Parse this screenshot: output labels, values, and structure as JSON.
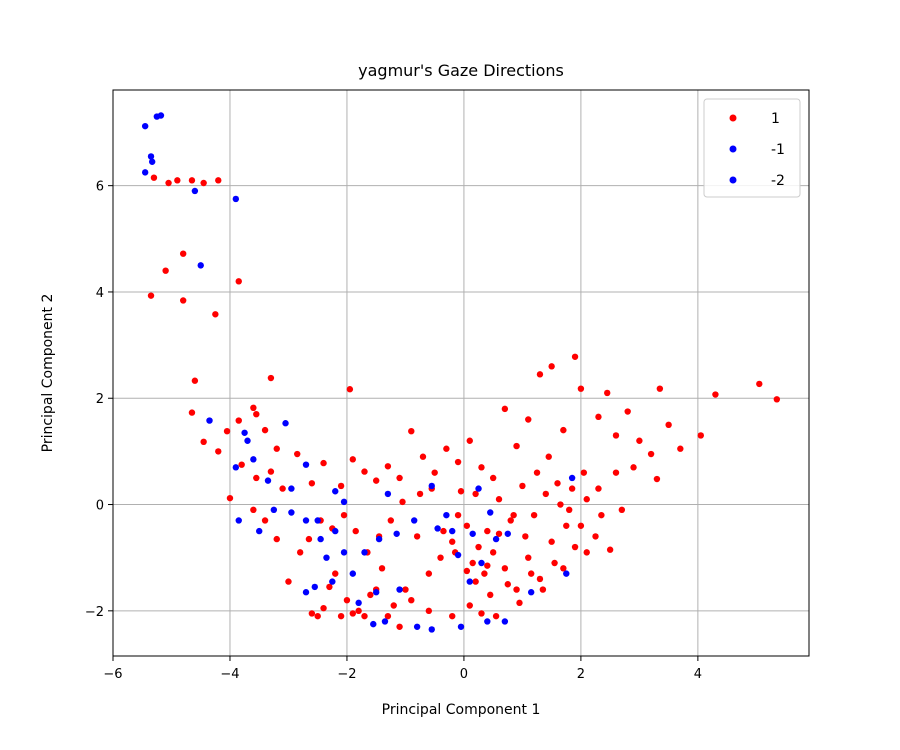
{
  "chart_data": {
    "type": "scatter",
    "title": "yagmur's Gaze Directions",
    "xlabel": "Principal Component 1",
    "ylabel": "Principal Component 2",
    "xlim": [
      -6.0,
      5.9
    ],
    "ylim": [
      -2.85,
      7.8
    ],
    "xticks": [
      -6,
      -4,
      -2,
      0,
      2,
      4
    ],
    "yticks": [
      -2,
      0,
      2,
      4,
      6
    ],
    "tick_labels_x": [
      "−6",
      "−4",
      "−2",
      "0",
      "2",
      "4"
    ],
    "tick_labels_y": [
      "−2",
      "0",
      "2",
      "4",
      "6"
    ],
    "grid": true,
    "legend_position": "top-right",
    "series": [
      {
        "name": "1",
        "color": "#ff0000",
        "points": [
          [
            -5.3,
            6.15
          ],
          [
            -5.05,
            6.05
          ],
          [
            -4.9,
            6.1
          ],
          [
            -4.65,
            6.1
          ],
          [
            -4.45,
            6.05
          ],
          [
            -4.2,
            6.1
          ],
          [
            -4.8,
            4.72
          ],
          [
            -5.1,
            4.4
          ],
          [
            -5.35,
            3.93
          ],
          [
            -4.8,
            3.84
          ],
          [
            -3.85,
            4.2
          ],
          [
            -4.25,
            3.58
          ],
          [
            -4.6,
            2.33
          ],
          [
            -3.3,
            2.38
          ],
          [
            -1.95,
            2.17
          ],
          [
            -4.65,
            1.73
          ],
          [
            -4.45,
            1.18
          ],
          [
            -4.2,
            1.0
          ],
          [
            -4.05,
            1.38
          ],
          [
            -3.85,
            1.58
          ],
          [
            -3.6,
            1.82
          ],
          [
            -3.55,
            1.7
          ],
          [
            -3.4,
            1.4
          ],
          [
            -3.2,
            1.05
          ],
          [
            -3.8,
            0.75
          ],
          [
            -3.55,
            0.5
          ],
          [
            -3.3,
            0.62
          ],
          [
            -3.1,
            0.3
          ],
          [
            -2.85,
            0.95
          ],
          [
            -2.6,
            0.4
          ],
          [
            -2.4,
            0.78
          ],
          [
            -2.1,
            0.35
          ],
          [
            -1.9,
            0.85
          ],
          [
            -1.7,
            0.62
          ],
          [
            -1.5,
            0.45
          ],
          [
            -1.3,
            0.72
          ],
          [
            -1.1,
            0.5
          ],
          [
            -0.9,
            1.38
          ],
          [
            -0.7,
            0.9
          ],
          [
            -0.5,
            0.6
          ],
          [
            -0.3,
            1.05
          ],
          [
            -0.1,
            0.8
          ],
          [
            0.1,
            1.2
          ],
          [
            0.3,
            0.7
          ],
          [
            0.5,
            0.5
          ],
          [
            0.7,
            1.8
          ],
          [
            0.9,
            1.1
          ],
          [
            1.1,
            1.6
          ],
          [
            1.3,
            2.45
          ],
          [
            1.5,
            2.6
          ],
          [
            1.7,
            1.4
          ],
          [
            1.9,
            2.78
          ],
          [
            2.0,
            2.18
          ],
          [
            2.3,
            1.65
          ],
          [
            2.45,
            2.1
          ],
          [
            2.6,
            1.3
          ],
          [
            2.8,
            1.75
          ],
          [
            3.0,
            1.2
          ],
          [
            3.2,
            0.95
          ],
          [
            3.35,
            2.18
          ],
          [
            3.5,
            1.5
          ],
          [
            3.7,
            1.05
          ],
          [
            4.05,
            1.3
          ],
          [
            4.3,
            2.07
          ],
          [
            5.05,
            2.27
          ],
          [
            5.35,
            1.98
          ],
          [
            3.3,
            0.48
          ],
          [
            2.9,
            0.7
          ],
          [
            2.6,
            0.6
          ],
          [
            2.3,
            0.3
          ],
          [
            2.1,
            0.1
          ],
          [
            2.35,
            -0.2
          ],
          [
            2.0,
            -0.4
          ],
          [
            1.8,
            -0.1
          ],
          [
            1.6,
            0.4
          ],
          [
            1.4,
            0.2
          ],
          [
            1.2,
            -0.2
          ],
          [
            1.0,
            0.35
          ],
          [
            0.8,
            -0.3
          ],
          [
            0.6,
            0.1
          ],
          [
            0.4,
            -0.5
          ],
          [
            0.25,
            -0.8
          ],
          [
            0.15,
            -1.1
          ],
          [
            0.35,
            -1.3
          ],
          [
            0.5,
            -0.9
          ],
          [
            0.7,
            -1.2
          ],
          [
            0.9,
            -1.6
          ],
          [
            1.1,
            -1.0
          ],
          [
            1.3,
            -1.4
          ],
          [
            1.5,
            -0.7
          ],
          [
            1.7,
            -1.2
          ],
          [
            1.9,
            -0.8
          ],
          [
            2.1,
            -0.9
          ],
          [
            0.05,
            -0.4
          ],
          [
            -0.1,
            -0.2
          ],
          [
            -0.2,
            -0.7
          ],
          [
            -0.4,
            -1.0
          ],
          [
            -0.6,
            -1.3
          ],
          [
            -0.8,
            -0.6
          ],
          [
            -1.0,
            -1.6
          ],
          [
            -1.2,
            -1.9
          ],
          [
            -1.4,
            -1.2
          ],
          [
            -1.6,
            -1.7
          ],
          [
            -1.8,
            -2.0
          ],
          [
            -2.0,
            -1.8
          ],
          [
            -2.2,
            -1.3
          ],
          [
            -2.4,
            -1.95
          ],
          [
            -2.6,
            -2.05
          ],
          [
            -2.8,
            -0.9
          ],
          [
            -3.0,
            -1.45
          ],
          [
            -3.2,
            -0.65
          ],
          [
            -3.4,
            -0.3
          ],
          [
            -3.6,
            -0.1
          ],
          [
            -4.0,
            0.12
          ],
          [
            -0.2,
            -2.1
          ],
          [
            -0.6,
            -2.0
          ],
          [
            -0.9,
            -1.8
          ],
          [
            -1.1,
            -2.3
          ],
          [
            -1.3,
            -2.1
          ],
          [
            -1.5,
            -1.6
          ],
          [
            -1.7,
            -2.1
          ],
          [
            -1.9,
            -2.05
          ],
          [
            -2.1,
            -2.1
          ],
          [
            -2.3,
            -1.55
          ],
          [
            -2.5,
            -2.1
          ],
          [
            0.1,
            -1.9
          ],
          [
            0.3,
            -2.05
          ],
          [
            0.45,
            -1.7
          ],
          [
            0.55,
            -2.1
          ],
          [
            0.75,
            -1.5
          ],
          [
            0.95,
            -1.85
          ],
          [
            1.15,
            -1.3
          ],
          [
            1.35,
            -1.6
          ],
          [
            1.55,
            -1.1
          ],
          [
            1.75,
            -0.4
          ],
          [
            2.25,
            -0.6
          ],
          [
            2.5,
            -0.85
          ],
          [
            2.7,
            -0.1
          ],
          [
            2.05,
            0.6
          ],
          [
            -0.55,
            0.3
          ],
          [
            -0.75,
            0.2
          ],
          [
            -1.05,
            0.05
          ],
          [
            -1.25,
            -0.3
          ],
          [
            -1.45,
            -0.6
          ],
          [
            -1.65,
            -0.9
          ],
          [
            -1.85,
            -0.5
          ],
          [
            -2.05,
            -0.2
          ],
          [
            -2.25,
            -0.45
          ],
          [
            -2.45,
            -0.3
          ],
          [
            -2.65,
            -0.65
          ],
          [
            -0.35,
            -0.5
          ],
          [
            -0.15,
            -0.9
          ],
          [
            0.05,
            -1.25
          ],
          [
            0.2,
            -1.45
          ],
          [
            0.4,
            -1.15
          ],
          [
            0.6,
            -0.55
          ],
          [
            0.85,
            -0.2
          ],
          [
            1.05,
            -0.6
          ],
          [
            1.25,
            0.6
          ],
          [
            1.45,
            0.9
          ],
          [
            1.65,
            0.0
          ],
          [
            1.85,
            0.3
          ],
          [
            0.2,
            0.2
          ],
          [
            -0.05,
            0.25
          ]
        ]
      },
      {
        "name": "-1",
        "color": "#0000ff",
        "points": [
          [
            -5.45,
            7.12
          ],
          [
            -5.25,
            7.3
          ],
          [
            -5.18,
            7.32
          ],
          [
            -5.35,
            6.55
          ],
          [
            -5.33,
            6.45
          ],
          [
            -5.45,
            6.25
          ],
          [
            -4.6,
            5.9
          ],
          [
            -3.9,
            5.75
          ],
          [
            -4.5,
            4.5
          ],
          [
            -4.35,
            1.58
          ],
          [
            -3.75,
            1.35
          ],
          [
            -3.7,
            1.2
          ],
          [
            -3.9,
            0.7
          ],
          [
            -3.6,
            0.85
          ],
          [
            -3.35,
            0.45
          ],
          [
            -3.05,
            1.53
          ],
          [
            -2.95,
            0.3
          ],
          [
            -2.7,
            0.75
          ],
          [
            -2.5,
            -0.3
          ],
          [
            -2.2,
            0.25
          ],
          [
            -2.05,
            0.05
          ],
          [
            -3.85,
            -0.3
          ],
          [
            -3.5,
            -0.5
          ],
          [
            -3.25,
            -0.1
          ],
          [
            -2.95,
            -0.15
          ],
          [
            -2.7,
            -0.3
          ],
          [
            -2.45,
            -0.65
          ],
          [
            -2.2,
            -0.5
          ],
          [
            -2.05,
            -0.9
          ],
          [
            -1.9,
            -1.3
          ],
          [
            -2.25,
            -1.45
          ],
          [
            -2.55,
            -1.55
          ],
          [
            -2.7,
            -1.65
          ],
          [
            -2.35,
            -1.0
          ],
          [
            -1.8,
            -1.85
          ],
          [
            -1.55,
            -2.25
          ],
          [
            -1.35,
            -2.2
          ],
          [
            -1.5,
            -1.65
          ],
          [
            -1.1,
            -1.6
          ],
          [
            -0.8,
            -2.3
          ],
          [
            -0.55,
            -2.35
          ],
          [
            -1.7,
            -0.9
          ],
          [
            -1.45,
            -0.65
          ],
          [
            -1.15,
            -0.55
          ],
          [
            -0.85,
            -0.3
          ],
          [
            -0.45,
            -0.45
          ],
          [
            -0.3,
            -0.2
          ],
          [
            -0.1,
            -0.95
          ],
          [
            -0.05,
            -2.3
          ],
          [
            0.1,
            -1.45
          ],
          [
            0.3,
            -1.1
          ],
          [
            0.55,
            -0.65
          ],
          [
            0.75,
            -0.55
          ],
          [
            0.45,
            -0.15
          ],
          [
            0.25,
            0.3
          ],
          [
            -1.3,
            0.2
          ],
          [
            -0.55,
            0.35
          ],
          [
            1.15,
            -1.65
          ],
          [
            1.75,
            -1.3
          ],
          [
            1.85,
            0.5
          ],
          [
            0.7,
            -2.2
          ],
          [
            0.4,
            -2.2
          ],
          [
            -0.2,
            -0.5
          ],
          [
            0.15,
            -0.55
          ]
        ]
      },
      {
        "name": "-2",
        "color": "#0000ff",
        "points": []
      }
    ]
  }
}
